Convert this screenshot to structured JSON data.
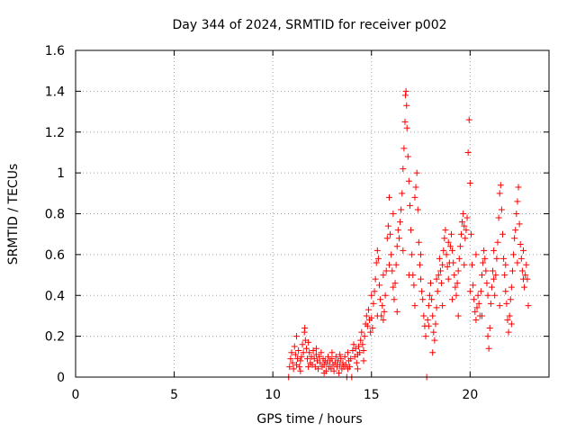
{
  "chart_data": {
    "type": "scatter",
    "title": "Day 344 of 2024, SRMTID for receiver p002",
    "xlabel": "GPS time / hours",
    "ylabel": "SRMTID / TECUs",
    "xlim": [
      0,
      24
    ],
    "ylim": [
      0,
      1.6
    ],
    "xticks": [
      0,
      5,
      10,
      15,
      20
    ],
    "xtick_labels": [
      "0",
      "5",
      "10",
      "15",
      "20"
    ],
    "yticks": [
      0,
      0.2,
      0.4,
      0.6,
      0.8,
      1,
      1.2,
      1.4,
      1.6
    ],
    "ytick_labels": [
      "0",
      "0.2",
      "0.4",
      "0.6",
      "0.8",
      "1",
      "1.2",
      "1.4",
      "1.6"
    ],
    "grid": true,
    "marker": "+",
    "colors": {
      "series": "#ff0000",
      "axes": "#000000",
      "grid": "#a0a0a0"
    },
    "series": [
      {
        "name": "SRMTID",
        "points": [
          [
            10.8,
            0.0
          ],
          [
            10.85,
            0.05
          ],
          [
            10.9,
            0.09
          ],
          [
            10.95,
            0.12
          ],
          [
            11.0,
            0.07
          ],
          [
            11.05,
            0.04
          ],
          [
            11.1,
            0.15
          ],
          [
            11.15,
            0.11
          ],
          [
            11.2,
            0.06
          ],
          [
            11.25,
            0.09
          ],
          [
            11.3,
            0.13
          ],
          [
            11.35,
            0.05
          ],
          [
            11.4,
            0.08
          ],
          [
            11.45,
            0.1
          ],
          [
            11.5,
            0.16
          ],
          [
            11.55,
            0.12
          ],
          [
            11.6,
            0.22
          ],
          [
            11.62,
            0.24
          ],
          [
            11.65,
            0.18
          ],
          [
            11.7,
            0.14
          ],
          [
            11.75,
            0.09
          ],
          [
            11.8,
            0.17
          ],
          [
            11.85,
            0.12
          ],
          [
            11.9,
            0.07
          ],
          [
            11.95,
            0.1
          ],
          [
            12.0,
            0.06
          ],
          [
            12.05,
            0.13
          ],
          [
            12.1,
            0.09
          ],
          [
            12.15,
            0.05
          ],
          [
            12.2,
            0.11
          ],
          [
            12.25,
            0.08
          ],
          [
            12.3,
            0.04
          ],
          [
            12.35,
            0.1
          ],
          [
            12.4,
            0.07
          ],
          [
            12.45,
            0.12
          ],
          [
            12.5,
            0.05
          ],
          [
            12.55,
            0.09
          ],
          [
            12.6,
            0.06
          ],
          [
            12.65,
            0.08
          ],
          [
            12.7,
            0.03
          ],
          [
            12.75,
            0.07
          ],
          [
            12.8,
            0.1
          ],
          [
            12.85,
            0.05
          ],
          [
            12.9,
            0.08
          ],
          [
            12.95,
            0.04
          ],
          [
            13.0,
            0.09
          ],
          [
            13.05,
            0.06
          ],
          [
            13.1,
            0.03
          ],
          [
            13.15,
            0.07
          ],
          [
            13.2,
            0.1
          ],
          [
            13.25,
            0.05
          ],
          [
            13.3,
            0.08
          ],
          [
            13.35,
            0.02
          ],
          [
            13.4,
            0.06
          ],
          [
            13.45,
            0.09
          ],
          [
            13.5,
            0.04
          ],
          [
            13.55,
            0.07
          ],
          [
            13.6,
            0.05
          ],
          [
            13.65,
            0.1
          ],
          [
            13.7,
            0.06
          ],
          [
            13.75,
            0.0
          ],
          [
            13.8,
            0.04
          ],
          [
            13.85,
            0.08
          ],
          [
            13.9,
            0.05
          ],
          [
            13.95,
            0.09
          ],
          [
            14.0,
            0.0
          ],
          [
            14.05,
            0.13
          ],
          [
            14.1,
            0.16
          ],
          [
            14.15,
            0.1
          ],
          [
            14.2,
            0.14
          ],
          [
            14.25,
            0.07
          ],
          [
            14.3,
            0.11
          ],
          [
            14.35,
            0.15
          ],
          [
            14.4,
            0.12
          ],
          [
            14.45,
            0.18
          ],
          [
            14.5,
            0.22
          ],
          [
            14.55,
            0.16
          ],
          [
            14.6,
            0.13
          ],
          [
            14.65,
            0.2
          ],
          [
            14.7,
            0.26
          ],
          [
            14.75,
            0.3
          ],
          [
            14.8,
            0.25
          ],
          [
            14.85,
            0.33
          ],
          [
            14.9,
            0.28
          ],
          [
            14.95,
            0.22
          ],
          [
            15.0,
            0.29
          ],
          [
            15.05,
            0.24
          ],
          [
            15.1,
            0.36
          ],
          [
            15.15,
            0.42
          ],
          [
            15.2,
            0.48
          ],
          [
            15.25,
            0.56
          ],
          [
            15.3,
            0.62
          ],
          [
            15.35,
            0.58
          ],
          [
            15.4,
            0.45
          ],
          [
            15.45,
            0.38
          ],
          [
            15.5,
            0.3
          ],
          [
            15.55,
            0.35
          ],
          [
            15.6,
            0.28
          ],
          [
            15.65,
            0.32
          ],
          [
            15.7,
            0.4
          ],
          [
            15.75,
            0.52
          ],
          [
            15.8,
            0.68
          ],
          [
            15.85,
            0.74
          ],
          [
            15.9,
            0.88
          ],
          [
            15.95,
            0.7
          ],
          [
            16.0,
            0.6
          ],
          [
            16.05,
            0.52
          ],
          [
            16.1,
            0.44
          ],
          [
            16.15,
            0.38
          ],
          [
            16.2,
            0.46
          ],
          [
            16.25,
            0.55
          ],
          [
            16.3,
            0.64
          ],
          [
            16.35,
            0.72
          ],
          [
            16.4,
            0.68
          ],
          [
            16.45,
            0.76
          ],
          [
            16.5,
            0.82
          ],
          [
            16.55,
            0.9
          ],
          [
            16.6,
            1.02
          ],
          [
            16.65,
            1.12
          ],
          [
            16.7,
            1.25
          ],
          [
            16.72,
            1.38
          ],
          [
            16.75,
            1.4
          ],
          [
            16.78,
            1.33
          ],
          [
            16.8,
            1.22
          ],
          [
            16.85,
            1.08
          ],
          [
            16.9,
            0.96
          ],
          [
            16.95,
            0.84
          ],
          [
            17.0,
            0.72
          ],
          [
            17.05,
            0.6
          ],
          [
            17.1,
            0.5
          ],
          [
            17.15,
            0.45
          ],
          [
            17.2,
            0.88
          ],
          [
            17.25,
            0.93
          ],
          [
            17.3,
            1.0
          ],
          [
            17.35,
            0.82
          ],
          [
            17.4,
            0.66
          ],
          [
            17.45,
            0.55
          ],
          [
            17.5,
            0.48
          ],
          [
            17.55,
            0.42
          ],
          [
            17.6,
            0.38
          ],
          [
            17.65,
            0.3
          ],
          [
            17.7,
            0.25
          ],
          [
            17.75,
            0.2
          ],
          [
            17.8,
            0.0
          ],
          [
            17.85,
            0.28
          ],
          [
            17.9,
            0.35
          ],
          [
            17.95,
            0.4
          ],
          [
            18.0,
            0.46
          ],
          [
            18.05,
            0.38
          ],
          [
            18.1,
            0.3
          ],
          [
            18.15,
            0.22
          ],
          [
            18.2,
            0.18
          ],
          [
            18.25,
            0.26
          ],
          [
            18.3,
            0.34
          ],
          [
            18.35,
            0.42
          ],
          [
            18.4,
            0.5
          ],
          [
            18.45,
            0.58
          ],
          [
            18.5,
            0.52
          ],
          [
            18.55,
            0.46
          ],
          [
            18.6,
            0.55
          ],
          [
            18.65,
            0.62
          ],
          [
            18.7,
            0.68
          ],
          [
            18.75,
            0.72
          ],
          [
            18.8,
            0.6
          ],
          [
            18.85,
            0.54
          ],
          [
            18.9,
            0.48
          ],
          [
            18.95,
            0.56
          ],
          [
            19.0,
            0.64
          ],
          [
            19.05,
            0.7
          ],
          [
            19.1,
            0.62
          ],
          [
            19.15,
            0.56
          ],
          [
            19.2,
            0.5
          ],
          [
            19.25,
            0.44
          ],
          [
            19.3,
            0.4
          ],
          [
            19.35,
            0.46
          ],
          [
            19.4,
            0.52
          ],
          [
            19.45,
            0.58
          ],
          [
            19.5,
            0.64
          ],
          [
            19.55,
            0.7
          ],
          [
            19.6,
            0.76
          ],
          [
            19.65,
            0.8
          ],
          [
            19.7,
            0.74
          ],
          [
            19.75,
            0.68
          ],
          [
            19.8,
            0.72
          ],
          [
            19.85,
            0.78
          ],
          [
            19.9,
            1.1
          ],
          [
            19.95,
            1.26
          ],
          [
            20.0,
            0.95
          ],
          [
            20.05,
            0.7
          ],
          [
            20.1,
            0.55
          ],
          [
            20.15,
            0.45
          ],
          [
            20.2,
            0.38
          ],
          [
            20.25,
            0.32
          ],
          [
            20.3,
            0.28
          ],
          [
            20.35,
            0.34
          ],
          [
            20.4,
            0.4
          ],
          [
            20.45,
            0.36
          ],
          [
            20.5,
            0.3
          ],
          [
            20.55,
            0.42
          ],
          [
            20.6,
            0.5
          ],
          [
            20.65,
            0.56
          ],
          [
            20.7,
            0.62
          ],
          [
            20.75,
            0.58
          ],
          [
            20.8,
            0.52
          ],
          [
            20.85,
            0.46
          ],
          [
            20.9,
            0.2
          ],
          [
            20.95,
            0.14
          ],
          [
            21.0,
            0.24
          ],
          [
            21.05,
            0.36
          ],
          [
            21.1,
            0.44
          ],
          [
            21.15,
            0.52
          ],
          [
            21.2,
            0.48
          ],
          [
            21.25,
            0.4
          ],
          [
            21.3,
            0.5
          ],
          [
            21.35,
            0.58
          ],
          [
            21.4,
            0.66
          ],
          [
            21.45,
            0.78
          ],
          [
            21.5,
            0.9
          ],
          [
            21.55,
            0.94
          ],
          [
            21.6,
            0.82
          ],
          [
            21.65,
            0.7
          ],
          [
            21.7,
            0.58
          ],
          [
            21.75,
            0.5
          ],
          [
            21.8,
            0.42
          ],
          [
            21.85,
            0.36
          ],
          [
            21.9,
            0.28
          ],
          [
            21.95,
            0.22
          ],
          [
            22.0,
            0.3
          ],
          [
            22.05,
            0.38
          ],
          [
            22.1,
            0.44
          ],
          [
            22.15,
            0.52
          ],
          [
            22.2,
            0.6
          ],
          [
            22.25,
            0.68
          ],
          [
            22.3,
            0.72
          ],
          [
            22.35,
            0.8
          ],
          [
            22.4,
            0.86
          ],
          [
            22.45,
            0.93
          ],
          [
            22.5,
            0.75
          ],
          [
            22.55,
            0.65
          ],
          [
            22.6,
            0.58
          ],
          [
            22.65,
            0.52
          ],
          [
            22.7,
            0.48
          ],
          [
            22.75,
            0.44
          ],
          [
            22.8,
            0.5
          ],
          [
            22.85,
            0.55
          ],
          [
            22.9,
            0.48
          ],
          [
            22.95,
            0.35
          ],
          [
            11.2,
            0.2
          ],
          [
            11.4,
            0.03
          ],
          [
            11.8,
            0.05
          ],
          [
            12.2,
            0.14
          ],
          [
            12.6,
            0.02
          ],
          [
            13.0,
            0.12
          ],
          [
            13.4,
            0.11
          ],
          [
            13.8,
            0.12
          ],
          [
            14.3,
            0.04
          ],
          [
            14.6,
            0.08
          ],
          [
            15.0,
            0.4
          ],
          [
            15.3,
            0.3
          ],
          [
            15.6,
            0.5
          ],
          [
            15.9,
            0.55
          ],
          [
            16.1,
            0.8
          ],
          [
            16.3,
            0.32
          ],
          [
            16.6,
            0.62
          ],
          [
            16.9,
            0.5
          ],
          [
            17.2,
            0.35
          ],
          [
            17.5,
            0.6
          ],
          [
            17.9,
            0.25
          ],
          [
            18.1,
            0.12
          ],
          [
            18.3,
            0.48
          ],
          [
            18.6,
            0.35
          ],
          [
            18.9,
            0.66
          ],
          [
            19.1,
            0.38
          ],
          [
            19.4,
            0.3
          ],
          [
            19.7,
            0.55
          ],
          [
            20.0,
            0.42
          ],
          [
            20.3,
            0.6
          ],
          [
            20.6,
            0.3
          ],
          [
            20.9,
            0.4
          ],
          [
            21.2,
            0.62
          ],
          [
            21.5,
            0.35
          ],
          [
            21.8,
            0.55
          ],
          [
            22.1,
            0.26
          ],
          [
            22.4,
            0.56
          ],
          [
            22.7,
            0.62
          ]
        ]
      }
    ]
  }
}
